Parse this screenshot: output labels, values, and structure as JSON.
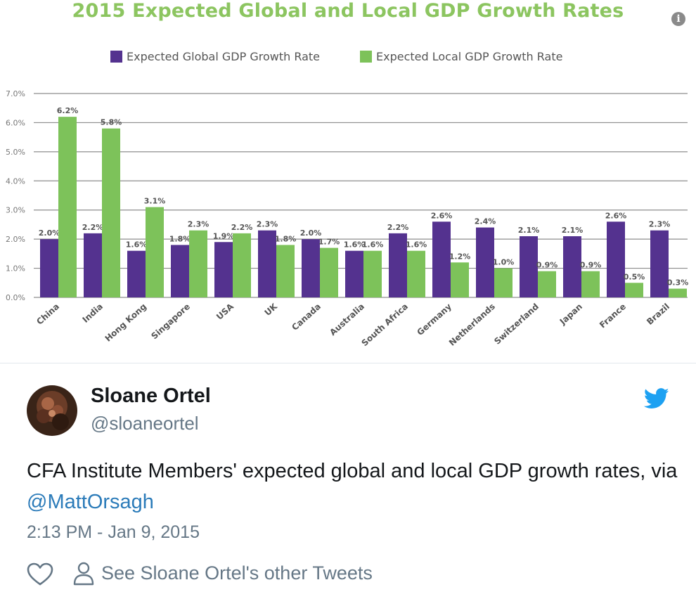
{
  "chart": {
    "info_icon": "info-icon",
    "colors": {
      "global": "#54328f",
      "local": "#7dc25a",
      "grid": "#8d8d8d",
      "title": "#8cc560",
      "text": "#555555"
    }
  },
  "chart_data": {
    "type": "bar",
    "title": "2015 Expected Global and Local GDP Growth Rates",
    "xlabel": "",
    "ylabel": "",
    "ylim": [
      0,
      7
    ],
    "yticks": [
      "0.0%",
      "1.0%",
      "2.0%",
      "3.0%",
      "4.0%",
      "5.0%",
      "6.0%",
      "7.0%"
    ],
    "grid": true,
    "legend_position": "top",
    "categories": [
      "China",
      "India",
      "Hong Kong",
      "Singapore",
      "USA",
      "UK",
      "Canada",
      "Australia",
      "South Africa",
      "Germany",
      "Netherlands",
      "Switzerland",
      "Japan",
      "France",
      "Brazil"
    ],
    "series": [
      {
        "name": "Expected Global GDP Growth Rate",
        "values": [
          2.0,
          2.2,
          1.6,
          1.8,
          1.9,
          2.3,
          2.0,
          1.6,
          2.2,
          2.6,
          2.4,
          2.1,
          2.1,
          2.6,
          2.3
        ],
        "labels": [
          "2.0%",
          "2.2%",
          "1.6%",
          "1.8%",
          "1.9%",
          "2.3%",
          "2.0%",
          "1.6%",
          "2.2%",
          "2.6%",
          "2.4%",
          "2.1%",
          "2.1%",
          "2.6%",
          "2.3%"
        ]
      },
      {
        "name": "Expected Local GDP Growth Rate",
        "values": [
          6.2,
          5.8,
          3.1,
          2.3,
          2.2,
          1.8,
          1.7,
          1.6,
          1.6,
          1.2,
          1.0,
          0.9,
          0.9,
          0.5,
          0.3
        ],
        "labels": [
          "6.2%",
          "5.8%",
          "3.1%",
          "2.3%",
          "2.2%",
          "1.8%",
          "1.7%",
          "1.6%",
          "1.6%",
          "1.2%",
          "1.0%",
          "0.9%",
          "0.9%",
          "0.5%",
          "0.3%"
        ]
      }
    ]
  },
  "tweet": {
    "author_name": "Sloane Ortel",
    "author_handle": "@sloaneortel",
    "text_main": "CFA Institute Members' expected global and local GDP growth rates, via ",
    "text_mention": "@MattOrsagh",
    "timestamp": "2:13 PM - Jan 9, 2015",
    "other_tweets_label": "See Sloane Ortel's other Tweets",
    "icons": {
      "like": "heart-icon",
      "profile": "person-icon",
      "brand": "twitter-bird-icon"
    },
    "colors": {
      "link": "#2b7bb9",
      "brand": "#1da1f2",
      "muted": "#657786",
      "text": "#14171a"
    }
  }
}
